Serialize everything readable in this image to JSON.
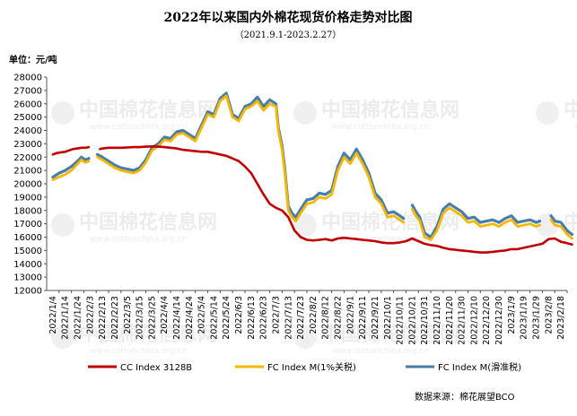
{
  "chart_data": {
    "type": "line",
    "title": "2022年以来国内外棉花现货价格走势对比图",
    "subtitle": "（2021.9.1-2023.2.27）",
    "ylabel": "单位：元/吨",
    "ylim": [
      12000,
      28000
    ],
    "yticks": [
      12000,
      13000,
      14000,
      15000,
      16000,
      17000,
      18000,
      19000,
      20000,
      21000,
      22000,
      23000,
      24000,
      25000,
      26000,
      27000,
      28000
    ],
    "grid": false,
    "legend_position": "bottom",
    "x_labels": [
      "2022/1/4",
      "2022/1/14",
      "2022/1/24",
      "2022/2/3",
      "2022/2/13",
      "2022/2/23",
      "2022/3/5",
      "2022/3/15",
      "2022/3/25",
      "2022/4/4",
      "2022/4/14",
      "2022/4/24",
      "2022/5/4",
      "2022/5/14",
      "2022/5/24",
      "2022/6/3",
      "2022/6/13",
      "2022/6/23",
      "2022/7/3",
      "2022/7/13",
      "2022/7/23",
      "2022/8/2",
      "2022/8/12",
      "2022/8/22",
      "2022/9/1",
      "2022/9/11",
      "2022/9/21",
      "2022/10/1",
      "2022/10/11",
      "2022/10/21",
      "2022/10/31",
      "2022/11/10",
      "2022/11/20",
      "2022/11/30",
      "2022/12/10",
      "2022/12/20",
      "2022/12/30",
      "2023/1/9",
      "2023/1/19",
      "2023/1/29",
      "2023/2/8",
      "2023/2/18"
    ],
    "series": [
      {
        "name": "CC Index 3128B",
        "color": "#c00000",
        "points": [
          [
            0,
            22200
          ],
          [
            0.3,
            22300
          ],
          [
            0.6,
            22350
          ],
          [
            1,
            22400
          ],
          [
            1.3,
            22500
          ],
          [
            1.6,
            22600
          ],
          [
            2,
            22650
          ],
          [
            2.3,
            22700
          ],
          [
            2.6,
            22700
          ],
          [
            2.9,
            22750
          ],
          [
            3.8,
            22600
          ],
          [
            4,
            22650
          ],
          [
            4.5,
            22700
          ],
          [
            5,
            22700
          ],
          [
            5.5,
            22700
          ],
          [
            6,
            22720
          ],
          [
            6.5,
            22750
          ],
          [
            7,
            22750
          ],
          [
            7.5,
            22780
          ],
          [
            8,
            22800
          ],
          [
            8.5,
            22780
          ],
          [
            9,
            22750
          ],
          [
            9.5,
            22700
          ],
          [
            10,
            22650
          ],
          [
            10.5,
            22550
          ],
          [
            11,
            22500
          ],
          [
            11.5,
            22450
          ],
          [
            12,
            22400
          ],
          [
            12.5,
            22400
          ],
          [
            13,
            22300
          ],
          [
            13.5,
            22200
          ],
          [
            14,
            22100
          ],
          [
            14.5,
            21900
          ],
          [
            15,
            21700
          ],
          [
            15.5,
            21300
          ],
          [
            16,
            20800
          ],
          [
            16.5,
            20000
          ],
          [
            17,
            19200
          ],
          [
            17.5,
            18500
          ],
          [
            18,
            18200
          ],
          [
            18.5,
            18000
          ],
          [
            19,
            17500
          ],
          [
            19.5,
            16500
          ],
          [
            20,
            16000
          ],
          [
            20.5,
            15800
          ],
          [
            21,
            15750
          ],
          [
            21.5,
            15800
          ],
          [
            22,
            15850
          ],
          [
            22.5,
            15750
          ],
          [
            23,
            15900
          ],
          [
            23.5,
            15950
          ],
          [
            24,
            15900
          ],
          [
            24.5,
            15850
          ],
          [
            25,
            15800
          ],
          [
            25.5,
            15750
          ],
          [
            26,
            15700
          ],
          [
            26.5,
            15600
          ],
          [
            27,
            15550
          ],
          [
            27.5,
            15550
          ],
          [
            28,
            15600
          ],
          [
            28.5,
            15700
          ],
          [
            29,
            15900
          ],
          [
            29.5,
            15700
          ],
          [
            30,
            15500
          ],
          [
            30.5,
            15400
          ],
          [
            31,
            15350
          ],
          [
            31.5,
            15200
          ],
          [
            32,
            15100
          ],
          [
            32.5,
            15050
          ],
          [
            33,
            15000
          ],
          [
            33.5,
            14950
          ],
          [
            34,
            14900
          ],
          [
            34.5,
            14850
          ],
          [
            35,
            14850
          ],
          [
            35.5,
            14900
          ],
          [
            36,
            14950
          ],
          [
            36.5,
            15000
          ],
          [
            37,
            15100
          ],
          [
            37.5,
            15100
          ],
          [
            38,
            15200
          ],
          [
            38.5,
            15300
          ],
          [
            39,
            15400
          ],
          [
            39.5,
            15500
          ],
          [
            40,
            15850
          ],
          [
            40.5,
            15900
          ],
          [
            41,
            15650
          ],
          [
            41.5,
            15550
          ],
          [
            41.9,
            15450
          ]
        ]
      },
      {
        "name": "FC Index M(1%关税)",
        "color": "#f5b800",
        "points": [
          [
            0,
            20300
          ],
          [
            0.5,
            20500
          ],
          [
            1,
            20700
          ],
          [
            1.5,
            21000
          ],
          [
            2,
            21500
          ],
          [
            2.3,
            21800
          ],
          [
            2.6,
            21600
          ],
          [
            2.9,
            21700
          ],
          [
            3.6,
            22000
          ],
          [
            4,
            21800
          ],
          [
            4.5,
            21500
          ],
          [
            5,
            21200
          ],
          [
            5.5,
            21000
          ],
          [
            6,
            20900
          ],
          [
            6.5,
            20800
          ],
          [
            7,
            21000
          ],
          [
            7.5,
            21600
          ],
          [
            8,
            22500
          ],
          [
            8.5,
            22800
          ],
          [
            9,
            23300
          ],
          [
            9.5,
            23200
          ],
          [
            10,
            23700
          ],
          [
            10.5,
            23800
          ],
          [
            11,
            23500
          ],
          [
            11.5,
            23200
          ],
          [
            12,
            24200
          ],
          [
            12.5,
            25200
          ],
          [
            13,
            25000
          ],
          [
            13.5,
            26200
          ],
          [
            14,
            26600
          ],
          [
            14.5,
            25000
          ],
          [
            15,
            24700
          ],
          [
            15.5,
            25600
          ],
          [
            16,
            25800
          ],
          [
            16.5,
            26200
          ],
          [
            17,
            25500
          ],
          [
            17.5,
            26000
          ],
          [
            18,
            25800
          ],
          [
            18.2,
            24000
          ],
          [
            18.5,
            22500
          ],
          [
            18.7,
            21000
          ],
          [
            19,
            18000
          ],
          [
            19.3,
            17500
          ],
          [
            19.6,
            17200
          ],
          [
            20,
            17800
          ],
          [
            20.5,
            18500
          ],
          [
            21,
            18600
          ],
          [
            21.5,
            19000
          ],
          [
            22,
            18900
          ],
          [
            22.5,
            19200
          ],
          [
            23,
            21000
          ],
          [
            23.5,
            22000
          ],
          [
            24,
            21500
          ],
          [
            24.5,
            22300
          ],
          [
            25,
            21500
          ],
          [
            25.5,
            20500
          ],
          [
            26,
            19000
          ],
          [
            26.5,
            18500
          ],
          [
            27,
            17500
          ],
          [
            27.5,
            17600
          ],
          [
            28,
            17300
          ],
          [
            28.3,
            17100
          ],
          [
            29,
            18100
          ],
          [
            29.3,
            17600
          ],
          [
            29.6,
            17200
          ],
          [
            30,
            16000
          ],
          [
            30.5,
            15800
          ],
          [
            31,
            16500
          ],
          [
            31.5,
            17800
          ],
          [
            32,
            18200
          ],
          [
            32.5,
            17900
          ],
          [
            33,
            17600
          ],
          [
            33.5,
            17100
          ],
          [
            34,
            17200
          ],
          [
            34.5,
            16800
          ],
          [
            35,
            16900
          ],
          [
            35.5,
            17000
          ],
          [
            36,
            16800
          ],
          [
            36.5,
            17100
          ],
          [
            37,
            17300
          ],
          [
            37.5,
            16800
          ],
          [
            38,
            16900
          ],
          [
            38.5,
            17000
          ],
          [
            39,
            16800
          ],
          [
            39.3,
            16900
          ],
          [
            40.2,
            17300
          ],
          [
            40.5,
            16900
          ],
          [
            41,
            16800
          ],
          [
            41.5,
            16200
          ],
          [
            41.9,
            15900
          ]
        ]
      },
      {
        "name": "FC Index M(滑准税)",
        "color": "#4a7eaa",
        "points": [
          [
            0,
            20500
          ],
          [
            0.5,
            20800
          ],
          [
            1,
            21000
          ],
          [
            1.5,
            21300
          ],
          [
            2,
            21700
          ],
          [
            2.3,
            22000
          ],
          [
            2.6,
            21800
          ],
          [
            2.9,
            21900
          ],
          [
            3.6,
            22200
          ],
          [
            4,
            22000
          ],
          [
            4.5,
            21700
          ],
          [
            5,
            21400
          ],
          [
            5.5,
            21200
          ],
          [
            6,
            21100
          ],
          [
            6.5,
            21000
          ],
          [
            7,
            21200
          ],
          [
            7.5,
            21800
          ],
          [
            8,
            22700
          ],
          [
            8.5,
            23000
          ],
          [
            9,
            23500
          ],
          [
            9.5,
            23400
          ],
          [
            10,
            23900
          ],
          [
            10.5,
            24000
          ],
          [
            11,
            23700
          ],
          [
            11.5,
            23400
          ],
          [
            12,
            24400
          ],
          [
            12.5,
            25400
          ],
          [
            13,
            25200
          ],
          [
            13.5,
            26400
          ],
          [
            14,
            26800
          ],
          [
            14.5,
            25200
          ],
          [
            15,
            24900
          ],
          [
            15.5,
            25800
          ],
          [
            16,
            26000
          ],
          [
            16.5,
            26500
          ],
          [
            17,
            25800
          ],
          [
            17.5,
            26300
          ],
          [
            18,
            26000
          ],
          [
            18.2,
            24200
          ],
          [
            18.5,
            22800
          ],
          [
            18.7,
            21300
          ],
          [
            19,
            18300
          ],
          [
            19.3,
            17800
          ],
          [
            19.6,
            17500
          ],
          [
            20,
            18100
          ],
          [
            20.5,
            18800
          ],
          [
            21,
            18900
          ],
          [
            21.5,
            19300
          ],
          [
            22,
            19200
          ],
          [
            22.5,
            19500
          ],
          [
            23,
            21300
          ],
          [
            23.5,
            22300
          ],
          [
            24,
            21800
          ],
          [
            24.5,
            22600
          ],
          [
            25,
            21800
          ],
          [
            25.5,
            20800
          ],
          [
            26,
            19300
          ],
          [
            26.5,
            18800
          ],
          [
            27,
            17800
          ],
          [
            27.5,
            17900
          ],
          [
            28,
            17600
          ],
          [
            28.3,
            17400
          ],
          [
            29,
            18400
          ],
          [
            29.3,
            17900
          ],
          [
            29.6,
            17500
          ],
          [
            30,
            16300
          ],
          [
            30.5,
            16000
          ],
          [
            31,
            16800
          ],
          [
            31.5,
            18100
          ],
          [
            32,
            18500
          ],
          [
            32.5,
            18200
          ],
          [
            33,
            17900
          ],
          [
            33.5,
            17400
          ],
          [
            34,
            17500
          ],
          [
            34.5,
            17100
          ],
          [
            35,
            17200
          ],
          [
            35.5,
            17300
          ],
          [
            36,
            17100
          ],
          [
            36.5,
            17400
          ],
          [
            37,
            17600
          ],
          [
            37.5,
            17100
          ],
          [
            38,
            17200
          ],
          [
            38.5,
            17300
          ],
          [
            39,
            17100
          ],
          [
            39.3,
            17200
          ],
          [
            40.2,
            17600
          ],
          [
            40.5,
            17200
          ],
          [
            41,
            17100
          ],
          [
            41.5,
            16500
          ],
          [
            41.9,
            16200
          ]
        ]
      }
    ],
    "source": "数据来源：棉花展望BCO",
    "watermark": {
      "text": "中国棉花信息网",
      "url_text": "www.cottonchina.org.cn"
    }
  }
}
